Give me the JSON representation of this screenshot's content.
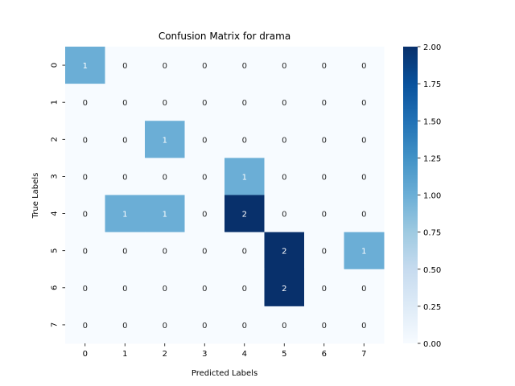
{
  "chart_data": {
    "type": "heatmap",
    "title": "Confusion Matrix for drama",
    "xlabel": "Predicted Labels",
    "ylabel": "True Labels",
    "x_categories": [
      "0",
      "1",
      "2",
      "3",
      "4",
      "5",
      "6",
      "7"
    ],
    "y_categories": [
      "0",
      "1",
      "2",
      "3",
      "4",
      "5",
      "6",
      "7"
    ],
    "matrix": [
      [
        1,
        0,
        0,
        0,
        0,
        0,
        0,
        0
      ],
      [
        0,
        0,
        0,
        0,
        0,
        0,
        0,
        0
      ],
      [
        0,
        0,
        1,
        0,
        0,
        0,
        0,
        0
      ],
      [
        0,
        0,
        0,
        0,
        1,
        0,
        0,
        0
      ],
      [
        0,
        1,
        1,
        0,
        2,
        0,
        0,
        0
      ],
      [
        0,
        0,
        0,
        0,
        0,
        2,
        0,
        1
      ],
      [
        0,
        0,
        0,
        0,
        0,
        2,
        0,
        0
      ],
      [
        0,
        0,
        0,
        0,
        0,
        0,
        0,
        0
      ]
    ],
    "colorbar": {
      "min": 0,
      "max": 2,
      "ticks": [
        "0.00",
        "0.25",
        "0.50",
        "0.75",
        "1.00",
        "1.25",
        "1.50",
        "1.75",
        "2.00"
      ],
      "colormap": "Blues",
      "colors": {
        "low": "#f7fbff",
        "mid": "#6baed6",
        "high": "#08306b"
      }
    },
    "grid": false
  }
}
